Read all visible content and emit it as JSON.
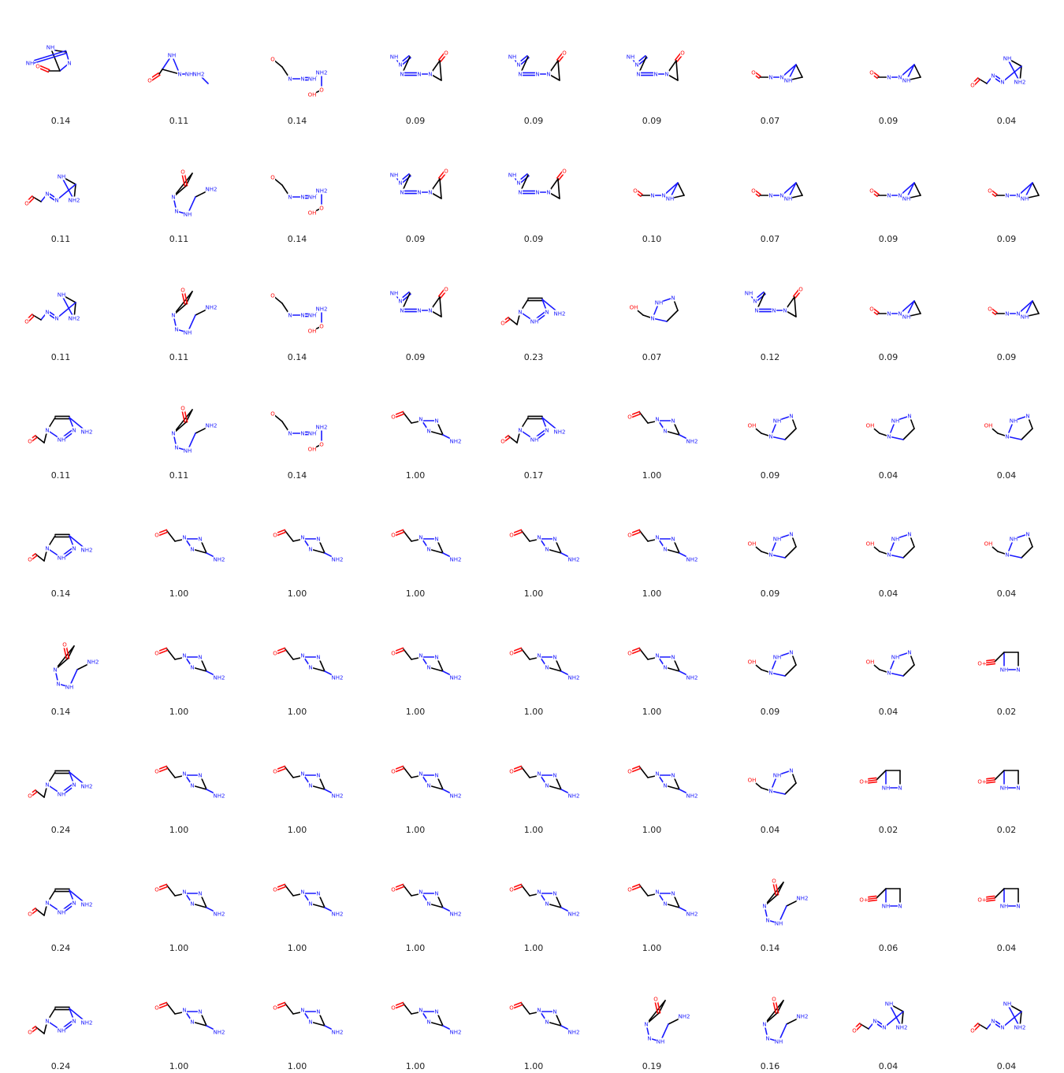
{
  "colors": {
    "carbon": "#000000",
    "nitrogen": "#1a1aff",
    "oxygen": "#ff0d0d",
    "fluorine": "#33cccc",
    "label": "#222222"
  },
  "grid": {
    "columns": 9,
    "rows": 9
  },
  "templates": {
    "A": {
      "bonds": [
        [
          0,
          1,
          "N"
        ],
        [
          1,
          2,
          "C"
        ],
        [
          2,
          3,
          "C"
        ],
        [
          3,
          4,
          "N"
        ],
        [
          4,
          0,
          "N"
        ],
        [
          4,
          5,
          "C"
        ],
        [
          5,
          6,
          "C"
        ],
        [
          6,
          7,
          "O",
          2
        ],
        [
          2,
          8,
          "N"
        ]
      ],
      "atoms": [
        [
          0,
          "N"
        ],
        [
          1,
          "N"
        ],
        [
          3,
          "N"
        ],
        [
          7,
          "O"
        ],
        [
          8,
          "NH2"
        ]
      ]
    },
    "B": {
      "bonds": [
        [
          0,
          1,
          "N"
        ],
        [
          1,
          2,
          "N",
          2
        ],
        [
          2,
          3,
          "C"
        ],
        [
          3,
          4,
          "N",
          2
        ],
        [
          4,
          5,
          "N"
        ],
        [
          5,
          6,
          "C"
        ],
        [
          6,
          7,
          "O",
          2
        ],
        [
          6,
          8,
          "C"
        ],
        [
          5,
          8,
          "C"
        ]
      ],
      "atoms": [
        [
          0,
          "NH"
        ],
        [
          1,
          "N"
        ],
        [
          3,
          "N"
        ],
        [
          4,
          "N"
        ],
        [
          5,
          "N"
        ],
        [
          7,
          "O"
        ]
      ]
    },
    "C": {
      "bonds": [
        [
          0,
          1,
          "C"
        ],
        [
          1,
          2,
          "C"
        ],
        [
          2,
          3,
          "N"
        ],
        [
          3,
          4,
          "N",
          2
        ],
        [
          4,
          5,
          "N"
        ],
        [
          5,
          6,
          "N"
        ],
        [
          6,
          7,
          "C"
        ]
      ],
      "atoms": [
        [
          0,
          "O"
        ],
        [
          2,
          "N"
        ],
        [
          3,
          "N"
        ],
        [
          4,
          "NH"
        ],
        [
          5,
          "NH2"
        ],
        [
          6,
          "O"
        ],
        [
          7,
          "OH"
        ]
      ]
    },
    "D": {
      "bonds": [
        [
          0,
          1,
          "C"
        ],
        [
          1,
          2,
          "N"
        ],
        [
          2,
          3,
          "N"
        ],
        [
          3,
          4,
          "C"
        ],
        [
          4,
          0,
          "N"
        ],
        [
          1,
          5,
          "C"
        ],
        [
          5,
          6,
          "O",
          2
        ],
        [
          3,
          7,
          "N",
          2
        ]
      ],
      "atoms": [
        [
          0,
          "NH"
        ],
        [
          2,
          "N"
        ],
        [
          6,
          "O"
        ],
        [
          7,
          "NH"
        ]
      ]
    },
    "E": {
      "bonds": [
        [
          0,
          1,
          "N"
        ],
        [
          1,
          2,
          "N"
        ],
        [
          2,
          0,
          "C"
        ],
        [
          0,
          3,
          "C"
        ],
        [
          3,
          4,
          "O",
          2
        ],
        [
          2,
          5,
          "N"
        ],
        [
          5,
          6,
          "N"
        ],
        [
          6,
          7,
          "N"
        ]
      ],
      "atoms": [
        [
          1,
          "NH"
        ],
        [
          2,
          "N"
        ],
        [
          4,
          "O"
        ],
        [
          5,
          "NH"
        ],
        [
          6,
          "NH2"
        ]
      ]
    },
    "F": {
      "bonds": [
        [
          0,
          1,
          "N"
        ],
        [
          1,
          2,
          "N"
        ],
        [
          2,
          3,
          "C"
        ],
        [
          3,
          4,
          "C"
        ],
        [
          4,
          0,
          "N"
        ],
        [
          0,
          5,
          "C"
        ],
        [
          5,
          6,
          "C"
        ]
      ],
      "atoms": [
        [
          0,
          "N"
        ],
        [
          1,
          "NH"
        ],
        [
          2,
          "N"
        ],
        [
          6,
          "OH"
        ]
      ]
    },
    "G": {
      "bonds": [
        [
          0,
          1,
          "C"
        ],
        [
          1,
          2,
          "N"
        ],
        [
          2,
          3,
          "N"
        ],
        [
          3,
          4,
          "N"
        ],
        [
          4,
          5,
          "C"
        ],
        [
          5,
          6,
          "C"
        ],
        [
          6,
          4,
          "C"
        ],
        [
          5,
          7,
          "O",
          2
        ]
      ],
      "atoms": [
        [
          0,
          "NH2"
        ],
        [
          2,
          "NH"
        ],
        [
          3,
          "N"
        ],
        [
          4,
          "N"
        ],
        [
          7,
          "O"
        ]
      ]
    },
    "H": {
      "bonds": [
        [
          0,
          1,
          "C"
        ],
        [
          1,
          2,
          "C"
        ],
        [
          2,
          0,
          "N"
        ],
        [
          1,
          3,
          "N"
        ],
        [
          3,
          4,
          "N",
          2
        ],
        [
          4,
          5,
          "N"
        ],
        [
          5,
          6,
          "C"
        ],
        [
          6,
          7,
          "O",
          2
        ]
      ],
      "atoms": [
        [
          0,
          "NH"
        ],
        [
          2,
          "NH2"
        ],
        [
          3,
          "N"
        ],
        [
          4,
          "N"
        ],
        [
          7,
          "O"
        ]
      ]
    },
    "I": {
      "bonds": [
        [
          0,
          1,
          "C"
        ],
        [
          1,
          2,
          "C",
          2
        ],
        [
          2,
          3,
          "N"
        ],
        [
          3,
          4,
          "N",
          2
        ],
        [
          4,
          0,
          "N"
        ],
        [
          0,
          5,
          "C"
        ],
        [
          5,
          6,
          "C"
        ],
        [
          6,
          7,
          "O",
          2
        ],
        [
          2,
          8,
          "N"
        ]
      ],
      "atoms": [
        [
          0,
          "N"
        ],
        [
          3,
          "N"
        ],
        [
          4,
          "NH"
        ],
        [
          7,
          "O"
        ],
        [
          8,
          "NH2"
        ]
      ]
    },
    "J": {
      "bonds": [
        [
          0,
          1,
          "C"
        ],
        [
          1,
          2,
          "C"
        ],
        [
          2,
          0,
          "N"
        ],
        [
          0,
          3,
          "N"
        ],
        [
          3,
          4,
          "N"
        ],
        [
          4,
          5,
          "C"
        ],
        [
          5,
          6,
          "O",
          2
        ]
      ],
      "atoms": [
        [
          2,
          "NH"
        ],
        [
          3,
          "N"
        ],
        [
          4,
          "N"
        ],
        [
          6,
          "O"
        ]
      ]
    },
    "K": {
      "bonds": [
        [
          0,
          1,
          "C"
        ],
        [
          1,
          2,
          "C"
        ],
        [
          2,
          3,
          "N"
        ],
        [
          3,
          0,
          "N"
        ],
        [
          0,
          4,
          "C"
        ],
        [
          4,
          5,
          "O",
          3
        ]
      ],
      "atoms": [
        [
          2,
          "N"
        ],
        [
          3,
          "NH"
        ],
        [
          5,
          "O+"
        ]
      ]
    }
  },
  "cells": [
    {
      "label": "0.14",
      "t": "D"
    },
    {
      "label": "0.11",
      "t": "E"
    },
    {
      "label": "0.14",
      "t": "C"
    },
    {
      "label": "0.09",
      "t": "B"
    },
    {
      "label": "0.09",
      "t": "B"
    },
    {
      "label": "0.09",
      "t": "B"
    },
    {
      "label": "0.07",
      "t": "J"
    },
    {
      "label": "0.09",
      "t": "J"
    },
    {
      "label": "0.04",
      "t": "H"
    },
    {
      "label": "0.11",
      "t": "H"
    },
    {
      "label": "0.11",
      "t": "G"
    },
    {
      "label": "0.14",
      "t": "C"
    },
    {
      "label": "0.09",
      "t": "B"
    },
    {
      "label": "0.09",
      "t": "B"
    },
    {
      "label": "0.10",
      "t": "J"
    },
    {
      "label": "0.07",
      "t": "J"
    },
    {
      "label": "0.09",
      "t": "J"
    },
    {
      "label": "0.09",
      "t": "J"
    },
    {
      "label": "0.11",
      "t": "H"
    },
    {
      "label": "0.11",
      "t": "G"
    },
    {
      "label": "0.14",
      "t": "C"
    },
    {
      "label": "0.09",
      "t": "B"
    },
    {
      "label": "0.23",
      "t": "I"
    },
    {
      "label": "0.07",
      "t": "F"
    },
    {
      "label": "0.12",
      "t": "B"
    },
    {
      "label": "0.09",
      "t": "J"
    },
    {
      "label": "0.09",
      "t": "J"
    },
    {
      "label": "0.11",
      "t": "I"
    },
    {
      "label": "0.11",
      "t": "G"
    },
    {
      "label": "0.14",
      "t": "C"
    },
    {
      "label": "1.00",
      "t": "A"
    },
    {
      "label": "0.17",
      "t": "I"
    },
    {
      "label": "1.00",
      "t": "A"
    },
    {
      "label": "0.09",
      "t": "F"
    },
    {
      "label": "0.04",
      "t": "F"
    },
    {
      "label": "0.04",
      "t": "F"
    },
    {
      "label": "0.14",
      "t": "I"
    },
    {
      "label": "1.00",
      "t": "A"
    },
    {
      "label": "1.00",
      "t": "A"
    },
    {
      "label": "1.00",
      "t": "A"
    },
    {
      "label": "1.00",
      "t": "A"
    },
    {
      "label": "1.00",
      "t": "A"
    },
    {
      "label": "0.09",
      "t": "F"
    },
    {
      "label": "0.04",
      "t": "F"
    },
    {
      "label": "0.04",
      "t": "F"
    },
    {
      "label": "0.14",
      "t": "G"
    },
    {
      "label": "1.00",
      "t": "A"
    },
    {
      "label": "1.00",
      "t": "A"
    },
    {
      "label": "1.00",
      "t": "A"
    },
    {
      "label": "1.00",
      "t": "A"
    },
    {
      "label": "1.00",
      "t": "A"
    },
    {
      "label": "0.09",
      "t": "F"
    },
    {
      "label": "0.04",
      "t": "F"
    },
    {
      "label": "0.02",
      "t": "K"
    },
    {
      "label": "0.24",
      "t": "I"
    },
    {
      "label": "1.00",
      "t": "A"
    },
    {
      "label": "1.00",
      "t": "A"
    },
    {
      "label": "1.00",
      "t": "A"
    },
    {
      "label": "1.00",
      "t": "A"
    },
    {
      "label": "1.00",
      "t": "A"
    },
    {
      "label": "0.04",
      "t": "F"
    },
    {
      "label": "0.02",
      "t": "K"
    },
    {
      "label": "0.02",
      "t": "K"
    },
    {
      "label": "0.24",
      "t": "I"
    },
    {
      "label": "1.00",
      "t": "A"
    },
    {
      "label": "1.00",
      "t": "A"
    },
    {
      "label": "1.00",
      "t": "A"
    },
    {
      "label": "1.00",
      "t": "A"
    },
    {
      "label": "1.00",
      "t": "A"
    },
    {
      "label": "0.14",
      "t": "G"
    },
    {
      "label": "0.06",
      "t": "K"
    },
    {
      "label": "0.04",
      "t": "K"
    },
    {
      "label": "0.24",
      "t": "I"
    },
    {
      "label": "1.00",
      "t": "A"
    },
    {
      "label": "1.00",
      "t": "A"
    },
    {
      "label": "1.00",
      "t": "A"
    },
    {
      "label": "1.00",
      "t": "A"
    },
    {
      "label": "0.19",
      "t": "G"
    },
    {
      "label": "0.16",
      "t": "G"
    },
    {
      "label": "0.04",
      "t": "H"
    },
    {
      "label": "0.04",
      "t": "H"
    }
  ]
}
